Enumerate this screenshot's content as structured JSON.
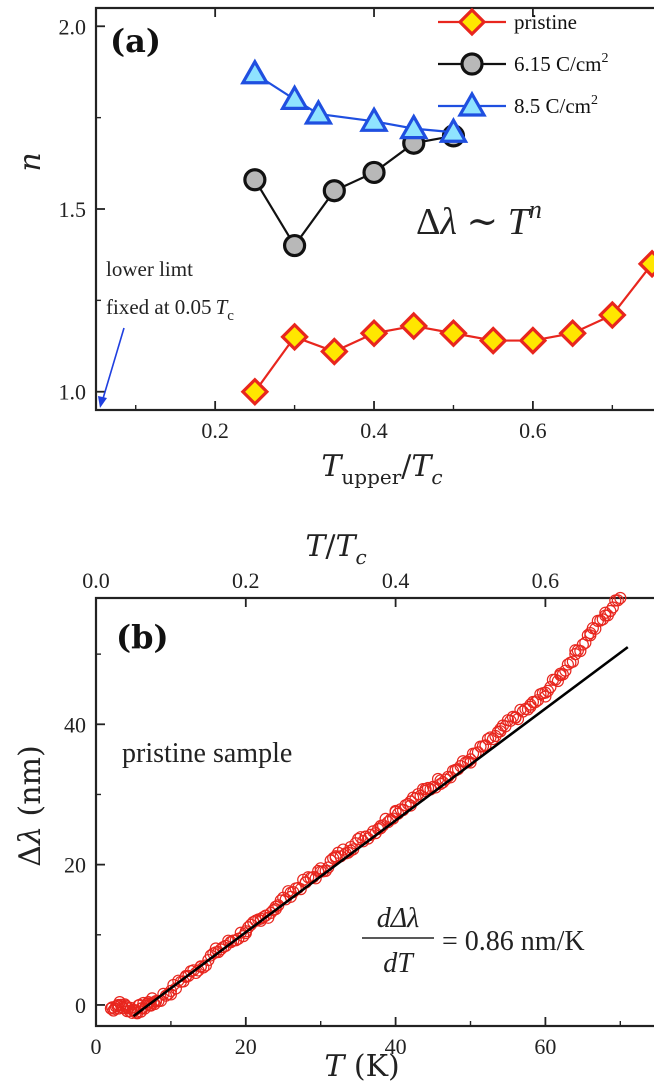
{
  "chart_data": [
    {
      "type": "scatter",
      "panel_label": "(a)",
      "xlabel": "T_upper/T_c",
      "ylabel": "n",
      "xlim": [
        0.05,
        0.75
      ],
      "ylim": [
        0.95,
        2.05
      ],
      "xticks": [
        "0.2",
        "0.4",
        "0.6"
      ],
      "yticks": [
        "1.0",
        "1.5",
        "2.0"
      ],
      "legend_position": "top-right",
      "formula": "Δλ ∼ T^n",
      "annotation": {
        "line1": "lower limt",
        "line2": "fixed at 0.05",
        "sym": "T",
        "sub": "c"
      },
      "series": [
        {
          "name": "pristine",
          "marker": "diamond",
          "fill": "#ffe600",
          "stroke": "#e8261e",
          "line": "#e8261e",
          "x": [
            0.25,
            0.3,
            0.35,
            0.4,
            0.45,
            0.5,
            0.55,
            0.6,
            0.65,
            0.7,
            0.75
          ],
          "y": [
            1.0,
            1.15,
            1.11,
            1.16,
            1.18,
            1.16,
            1.14,
            1.14,
            1.16,
            1.21,
            1.35
          ]
        },
        {
          "name": "6.15 C/cm²",
          "marker": "circle",
          "fill": "#b8b8b8",
          "stroke": "#111111",
          "line": "#111111",
          "x": [
            0.25,
            0.3,
            0.35,
            0.4,
            0.45,
            0.5
          ],
          "y": [
            1.58,
            1.4,
            1.55,
            1.6,
            1.68,
            1.7
          ]
        },
        {
          "name": "8.5 C/cm²",
          "marker": "triangle",
          "fill": "#8fe3ff",
          "stroke": "#1f4fe0",
          "line": "#1f4fe0",
          "x": [
            0.25,
            0.3,
            0.33,
            0.4,
            0.45,
            0.5
          ],
          "y": [
            1.87,
            1.8,
            1.76,
            1.74,
            1.72,
            1.71
          ]
        }
      ]
    },
    {
      "type": "scatter",
      "panel_label": "(b)",
      "xlabel": "T (K)",
      "ylabel": "Δλ (nm)",
      "top_xlabel": "T/T_c",
      "xlim": [
        0,
        75
      ],
      "ylim": [
        -3,
        58
      ],
      "xticks": [
        "0",
        "20",
        "40",
        "60"
      ],
      "yticks": [
        "0",
        "20",
        "40"
      ],
      "top_xticks": [
        "0.0",
        "0.2",
        "0.4",
        "0.6"
      ],
      "tc": 100,
      "annotation": "pristine sample",
      "formula": {
        "numerator": "dΔλ",
        "denominator": "dT",
        "rhs": "= 0.86 nm/K"
      },
      "series": [
        {
          "name": "pristine data",
          "marker": "open-circle",
          "stroke": "#e8261e",
          "x": [
            2,
            3,
            4,
            5,
            6,
            7,
            8,
            10,
            12,
            14,
            16,
            18,
            20,
            22,
            24,
            26,
            28,
            30,
            32,
            34,
            36,
            38,
            40,
            42,
            44,
            46,
            48,
            50,
            52,
            54,
            56,
            58,
            60,
            62,
            64,
            66,
            68,
            70
          ],
          "y": [
            -0.5,
            0,
            -0.3,
            -0.8,
            -0.5,
            0.2,
            0.5,
            2,
            4,
            5.5,
            7.5,
            9,
            10.5,
            12,
            14,
            16,
            17.5,
            19,
            21,
            22.5,
            24,
            25.5,
            27.5,
            29,
            30.5,
            32,
            33.5,
            35,
            37,
            39,
            41,
            42.5,
            44.5,
            47,
            50,
            53,
            55.5,
            58
          ]
        },
        {
          "name": "linear fit",
          "line": "#000000",
          "x": [
            5,
            71
          ],
          "y": [
            -1.6,
            51
          ]
        }
      ]
    }
  ]
}
